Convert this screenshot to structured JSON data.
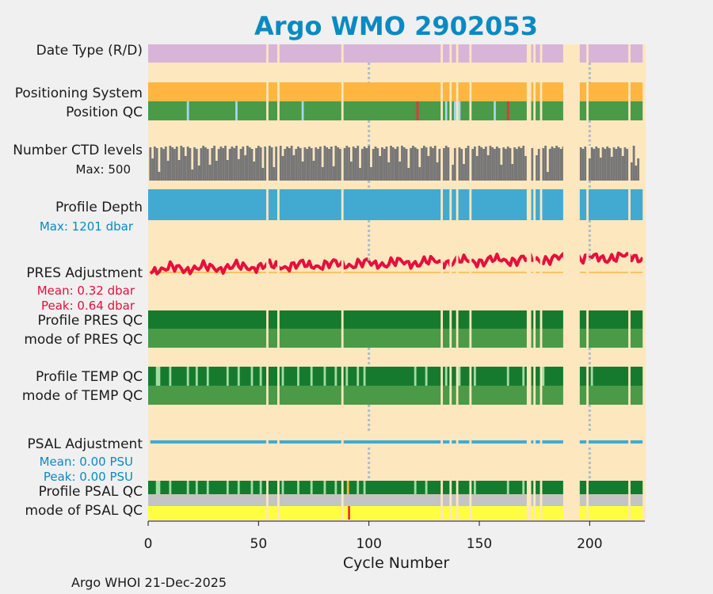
{
  "chart_data": {
    "type": "timeline",
    "title": "Argo WMO 2902053",
    "xlabel": "Cycle Number",
    "xlim": [
      0,
      225
    ],
    "xticks": [
      "0",
      "50",
      "100",
      "150",
      "200"
    ],
    "xtick_values": [
      0,
      50,
      100,
      150,
      200
    ],
    "vlines": [
      100,
      200
    ],
    "footer": "Argo WHOI 21-Dec-2025",
    "gaps": [
      [
        53.5,
        54.5
      ],
      [
        58.5,
        59.5
      ],
      [
        87.5,
        88.5
      ],
      [
        132.5,
        133.5
      ],
      [
        136.5,
        137.5
      ],
      [
        139.5,
        140.5
      ],
      [
        145.5,
        146.5
      ],
      [
        171.5,
        173.5
      ],
      [
        174.5,
        175.5
      ],
      [
        177.5,
        178.5
      ],
      [
        188,
        195.5
      ],
      [
        198.5,
        199.5
      ],
      [
        217.5,
        218.5
      ]
    ],
    "ctd_short_cycles": [
      2,
      5,
      9,
      14,
      17,
      20,
      23,
      28,
      31,
      36,
      41,
      44,
      48,
      52,
      57,
      61,
      66,
      70,
      75,
      79,
      84,
      92,
      96,
      101,
      105,
      109,
      114,
      118,
      123,
      127,
      131,
      138,
      143,
      149,
      154,
      160,
      165,
      171,
      176,
      181,
      200,
      205,
      210,
      215,
      219,
      221,
      222
    ],
    "rows": [
      {
        "label": "Date Type (R/D)",
        "color": "#d8b4d8"
      },
      {
        "label": "Positioning System",
        "color": "#ffb640"
      },
      {
        "label": "Position QC",
        "color": "#4a9a48"
      },
      {
        "label": "Number CTD levels",
        "color": "#777777"
      },
      {
        "label": "Profile Depth",
        "color": "#42aad0"
      },
      {
        "label": "PRES Adjustment",
        "color": "#e60f3c"
      },
      {
        "label": "Profile PRES QC",
        "color": "#167a2e"
      },
      {
        "label": "mode of PRES QC",
        "color": "#4a9a48"
      },
      {
        "label": "Profile TEMP QC",
        "color": "#167a2e"
      },
      {
        "label": "mode of TEMP QC",
        "color": "#4a9a48"
      },
      {
        "label": "PSAL Adjustment",
        "color": "#42aad0"
      },
      {
        "label": "Profile PSAL QC",
        "color": "#167a2e"
      },
      {
        "label": "mode of PSAL QC",
        "color": "#ffff40"
      }
    ],
    "annotations": {
      "ctd_max": "Max: 500",
      "depth_max": "Max: 1201 dbar",
      "pres_mean": "Mean: 0.32 dbar",
      "pres_peak": "Peak: 0.64 dbar",
      "psal_mean": "Mean: 0.00 PSU",
      "psal_peak": "Peak: 0.00 PSU"
    },
    "pres_adjustment": {
      "mean": 0.32,
      "peak": 0.64,
      "unit": "dbar"
    },
    "psal_adjustment": {
      "mean": 0.0,
      "peak": 0.0,
      "unit": "PSU"
    },
    "colors": {
      "background": "#fde7bf",
      "page": "#f0f0f0",
      "title": "#0a8ac2",
      "annot_blue": "#0a8ac2",
      "annot_red": "#e60f3c",
      "light_blue": "#a6d6ec",
      "light_green": "#a7dba6",
      "red": "#e8343c",
      "grey": "#c4c4c4",
      "orange_line": "#ffb640"
    }
  }
}
